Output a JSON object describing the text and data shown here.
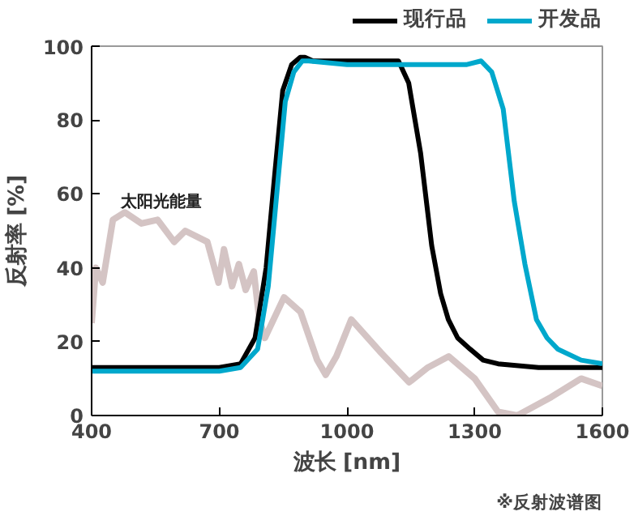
{
  "chart_data": {
    "type": "line",
    "xlabel": "波长 [nm]",
    "ylabel": "反射率 [%]",
    "xlim": [
      400,
      1600
    ],
    "xticks": [
      400,
      700,
      1000,
      1300,
      1600
    ],
    "ylim": [
      0,
      100
    ],
    "yticks": [
      0,
      20,
      40,
      60,
      80,
      100
    ],
    "grid": false,
    "legend": "top right",
    "line_style": "solid",
    "marker": "none",
    "annotations": [
      "※反射波谱图",
      "太阳光能量"
    ],
    "series": [
      {
        "color": "#d4c4c4",
        "x": [
          400,
          410,
          426,
          450,
          478,
          517,
          555,
          594,
          620,
          672,
          698,
          711,
          730,
          746,
          762,
          781,
          794,
          807,
          852,
          891,
          930,
          950,
          975,
          1010,
          1080,
          1146,
          1190,
          1239,
          1300,
          1355,
          1400,
          1480,
          1550,
          1600
        ],
        "values": [
          25,
          40,
          36,
          53,
          55,
          52,
          53,
          47,
          50,
          47,
          36,
          45,
          35,
          41,
          34,
          39,
          26,
          21,
          32,
          28,
          15,
          11,
          16,
          26,
          17,
          9,
          13,
          16,
          10,
          1,
          0,
          5,
          10,
          8
        ]
      },
      {
        "name": "现行品",
        "color": "#000000",
        "x": [
          400,
          500,
          600,
          700,
          750,
          784,
          810,
          830,
          849,
          870,
          890,
          901,
          920,
          1000,
          1100,
          1121,
          1145,
          1173,
          1199,
          1220,
          1238,
          1260,
          1289,
          1320,
          1355,
          1450,
          1600
        ],
        "values": [
          13,
          13,
          13,
          13,
          14,
          21,
          40,
          65,
          88,
          95,
          97,
          97,
          96,
          96,
          96,
          96,
          90,
          71,
          46,
          33,
          26,
          21,
          18,
          15,
          14,
          13,
          13
        ]
      },
      {
        "name": "开发品",
        "color": "#00a8cc",
        "x": [
          400,
          500,
          600,
          700,
          750,
          790,
          815,
          835,
          855,
          875,
          895,
          910,
          1000,
          1100,
          1200,
          1280,
          1315,
          1340,
          1367,
          1393,
          1418,
          1445,
          1470,
          1495,
          1550,
          1600
        ],
        "values": [
          12,
          12,
          12,
          12,
          13,
          18,
          35,
          60,
          85,
          93,
          96,
          96,
          95,
          95,
          95,
          95,
          96,
          93,
          83,
          58,
          41,
          26,
          21,
          18,
          15,
          14
        ]
      }
    ]
  }
}
